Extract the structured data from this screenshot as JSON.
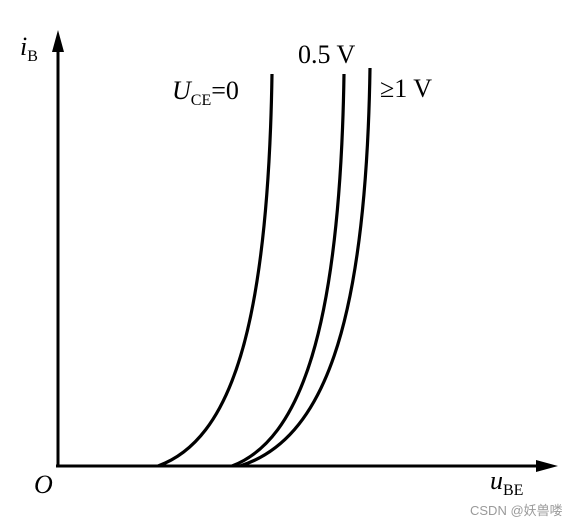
{
  "axes": {
    "y_label": {
      "main": "i",
      "sub": "B"
    },
    "x_label": {
      "main": "u",
      "sub": "BE"
    },
    "origin": "O"
  },
  "curve_labels": {
    "uce0": {
      "main": "U",
      "sub": "CE",
      "suffix": "=0"
    },
    "uce05": "0.5 V",
    "uce1": "≥1 V"
  },
  "watermark": "CSDN @妖兽喽"
}
